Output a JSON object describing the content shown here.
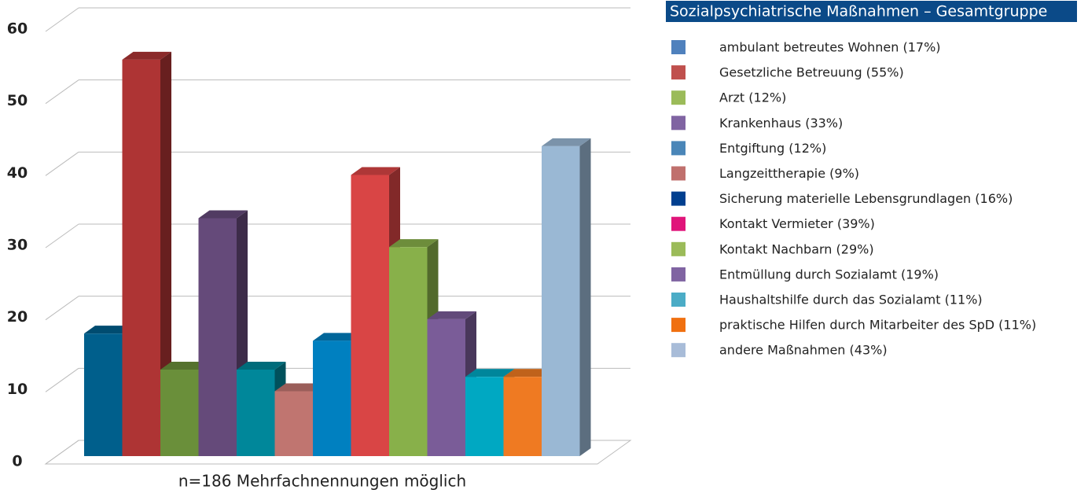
{
  "chart_data": {
    "type": "bar3d",
    "title": "Sozialpsychiatrische Maßnahmen – Gesamtgruppe",
    "x_label": "n=186 Mehrfachnennungen möglich",
    "categories": [
      "ambulant betreutes Wohnen (17%)",
      "Gesetzliche Betreuung (55%)",
      "Arzt (12%)",
      "Krankenhaus (33%)",
      "Entgiftung (12%)",
      "Langzeittherapie (9%)",
      "Sicherung materielle Lebensgrundlagen (16%)",
      "Kontakt Vermieter (39%)",
      "Kontakt Nachbarn (29%)",
      "Entmüllung durch Sozialamt (19%)",
      "Haushaltshilfe durch das Sozialamt (11%)",
      "praktische Hilfen durch Mitarbeiter des SpD (11%)",
      "andere Maßnahmen (43%)"
    ],
    "values": [
      17,
      55,
      12,
      33,
      12,
      9,
      16,
      39,
      29,
      19,
      11,
      11,
      43
    ],
    "colors": [
      "#005f8c",
      "#ae3434",
      "#6a8f3a",
      "#654a7a",
      "#00879a",
      "#c07570",
      "#0080c0",
      "#d94545",
      "#88b04a",
      "#7a5c98",
      "#00a8c2",
      "#ef7a22",
      "#9ab8d4"
    ],
    "legend_colors": [
      "#4f81bd",
      "#c0504d",
      "#9bbb59",
      "#8064a2",
      "#4a86b8",
      "#c0706d",
      "#003f8f",
      "#e0157a",
      "#9bbb59",
      "#8064a2",
      "#4bacc6",
      "#f07010",
      "#a8bcd8"
    ],
    "ylim": [
      0,
      60
    ],
    "yticks": [
      0,
      10,
      20,
      30,
      40,
      50,
      60
    ],
    "grid": true
  }
}
